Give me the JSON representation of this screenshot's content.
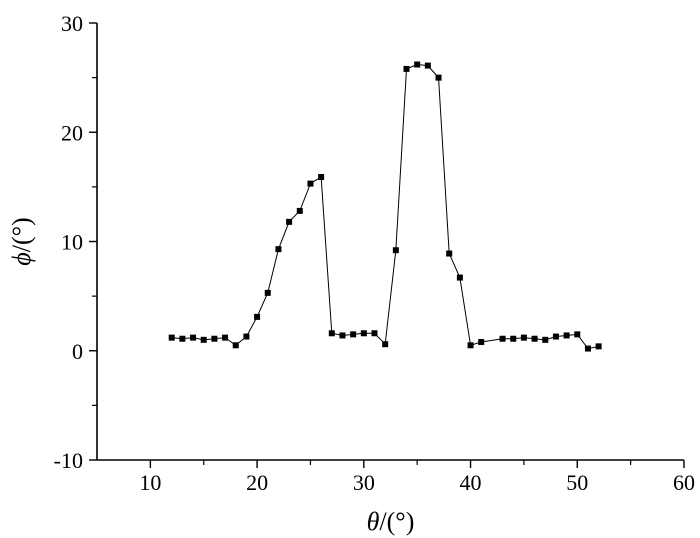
{
  "chart_data": {
    "type": "line",
    "title": "",
    "xlabel": {
      "symbol": "θ",
      "unit": "/(°)"
    },
    "ylabel": {
      "symbol": "ϕ",
      "unit": "/(°)"
    },
    "xlim": [
      5,
      60
    ],
    "ylim": [
      -10,
      30
    ],
    "x_ticks": [
      10,
      20,
      30,
      40,
      50,
      60
    ],
    "y_ticks": [
      -10,
      0,
      10,
      20,
      30
    ],
    "grid": false,
    "legend": "none",
    "series": [
      {
        "marker": "square",
        "color": "#000000",
        "x": [
          12,
          13,
          14,
          15,
          16,
          17,
          18,
          19,
          20,
          21,
          22,
          23,
          24,
          25,
          26,
          27,
          28,
          29,
          30,
          31,
          32,
          33,
          34,
          35,
          36,
          37,
          38,
          39,
          40,
          41,
          43,
          44,
          45,
          46,
          47,
          48,
          49,
          50,
          51,
          52
        ],
        "y": [
          1.2,
          1.1,
          1.2,
          1.0,
          1.1,
          1.2,
          0.5,
          1.3,
          3.1,
          5.3,
          9.3,
          11.8,
          12.8,
          15.3,
          15.9,
          1.6,
          1.4,
          1.5,
          1.6,
          1.6,
          0.6,
          9.2,
          25.8,
          26.2,
          26.1,
          25.0,
          8.9,
          6.7,
          0.5,
          0.8,
          1.1,
          1.1,
          1.2,
          1.1,
          1.0,
          1.3,
          1.4,
          1.5,
          0.2,
          0.4
        ]
      }
    ]
  }
}
